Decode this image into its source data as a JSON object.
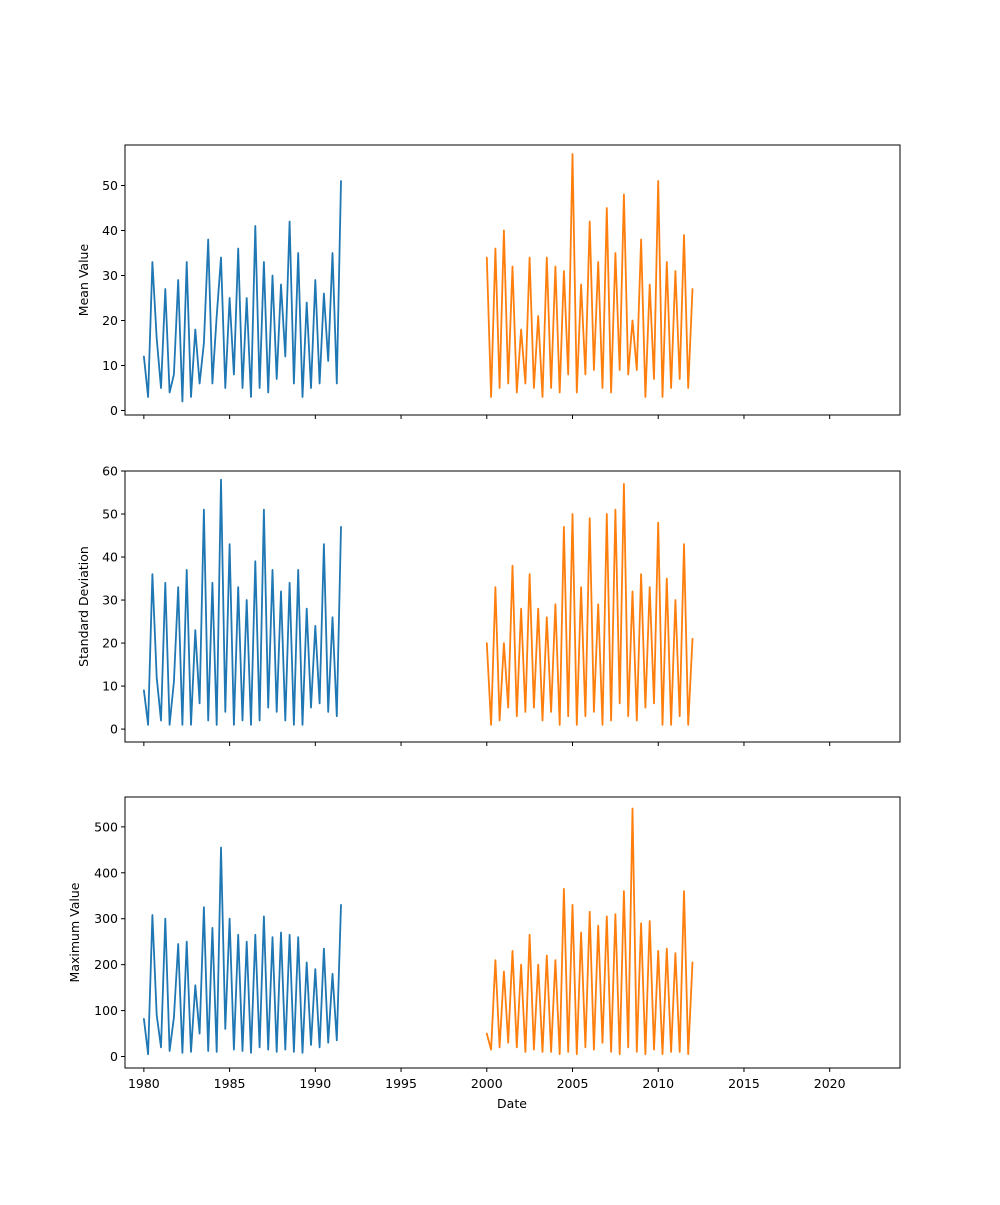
{
  "chart_data": {
    "type": "line",
    "xlabel": "Date",
    "xlim": [
      1978.9,
      2024.1
    ],
    "xticks": [
      1980,
      1985,
      1990,
      1995,
      2000,
      2005,
      2010,
      2015,
      2020
    ],
    "colors": {
      "series_1": "#1f77b4",
      "series_2": "#ff7f0e"
    },
    "grid": false,
    "legend": "none",
    "panels": [
      {
        "ylabel": "Mean Value",
        "ylim": [
          -1,
          59
        ],
        "yticks": [
          0,
          10,
          20,
          30,
          40,
          50
        ],
        "series": [
          {
            "color": "#1f77b4",
            "x_start": 1980.0,
            "x_step": 0.25,
            "values": [
              12,
              3,
              33,
              16,
              5,
              27,
              4,
              8,
              29,
              2,
              33,
              3,
              18,
              6,
              15,
              38,
              6,
              21,
              34,
              5,
              25,
              8,
              36,
              5,
              25,
              3,
              41,
              5,
              33,
              4,
              30,
              7,
              28,
              12,
              42,
              6,
              35,
              3,
              24,
              5,
              29,
              6,
              26,
              11,
              35,
              6,
              51
            ]
          },
          {
            "color": "#ff7f0e",
            "x_start": 2000.0,
            "x_step": 0.25,
            "values": [
              34,
              3,
              36,
              5,
              40,
              6,
              32,
              4,
              18,
              6,
              34,
              5,
              21,
              3,
              34,
              5,
              32,
              4,
              31,
              8,
              57,
              4,
              28,
              8,
              42,
              9,
              33,
              5,
              45,
              4,
              35,
              9,
              48,
              8,
              20,
              9,
              38,
              3,
              28,
              7,
              51,
              3,
              33,
              5,
              31,
              7,
              39,
              5,
              27
            ]
          }
        ]
      },
      {
        "ylabel": "Standard Deviation",
        "ylim": [
          -3,
          60
        ],
        "yticks": [
          0,
          10,
          20,
          30,
          40,
          50,
          60
        ],
        "series": [
          {
            "color": "#1f77b4",
            "x_start": 1980.0,
            "x_step": 0.25,
            "values": [
              9,
              1,
              36,
              12,
              2,
              34,
              1,
              11,
              33,
              1,
              37,
              1,
              23,
              6,
              51,
              2,
              34,
              1,
              58,
              4,
              43,
              1,
              33,
              2,
              30,
              1,
              39,
              2,
              51,
              5,
              37,
              4,
              32,
              2,
              34,
              1,
              37,
              1,
              28,
              5,
              24,
              6,
              43,
              4,
              26,
              3,
              47
            ]
          },
          {
            "color": "#ff7f0e",
            "x_start": 2000.0,
            "x_step": 0.25,
            "values": [
              20,
              1,
              33,
              2,
              20,
              5,
              38,
              3,
              28,
              4,
              36,
              5,
              28,
              2,
              26,
              4,
              29,
              1,
              47,
              3,
              50,
              1,
              33,
              3,
              49,
              4,
              29,
              1,
              50,
              2,
              51,
              6,
              57,
              3,
              32,
              2,
              36,
              5,
              33,
              6,
              48,
              1,
              35,
              1,
              30,
              3,
              43,
              1,
              21
            ]
          }
        ]
      },
      {
        "ylabel": "Maximum Value",
        "ylim": [
          -25,
          565
        ],
        "yticks": [
          0,
          100,
          200,
          300,
          400,
          500
        ],
        "series": [
          {
            "color": "#1f77b4",
            "x_start": 1980.0,
            "x_step": 0.25,
            "values": [
              82,
              5,
              308,
              90,
              20,
              300,
              12,
              85,
              245,
              8,
              250,
              10,
              155,
              50,
              325,
              12,
              280,
              10,
              455,
              60,
              300,
              15,
              265,
              12,
              250,
              8,
              265,
              20,
              305,
              15,
              260,
              10,
              270,
              15,
              265,
              10,
              260,
              8,
              205,
              25,
              190,
              20,
              235,
              30,
              180,
              35,
              330
            ]
          },
          {
            "color": "#ff7f0e",
            "x_start": 2000.0,
            "x_step": 0.25,
            "values": [
              50,
              15,
              210,
              20,
              185,
              30,
              230,
              20,
              200,
              10,
              265,
              15,
              200,
              10,
              220,
              10,
              210,
              5,
              365,
              10,
              330,
              5,
              270,
              20,
              315,
              15,
              285,
              30,
              305,
              10,
              310,
              5,
              360,
              20,
              540,
              10,
              290,
              5,
              295,
              15,
              230,
              5,
              235,
              10,
              225,
              10,
              360,
              5,
              205
            ]
          }
        ]
      }
    ]
  }
}
